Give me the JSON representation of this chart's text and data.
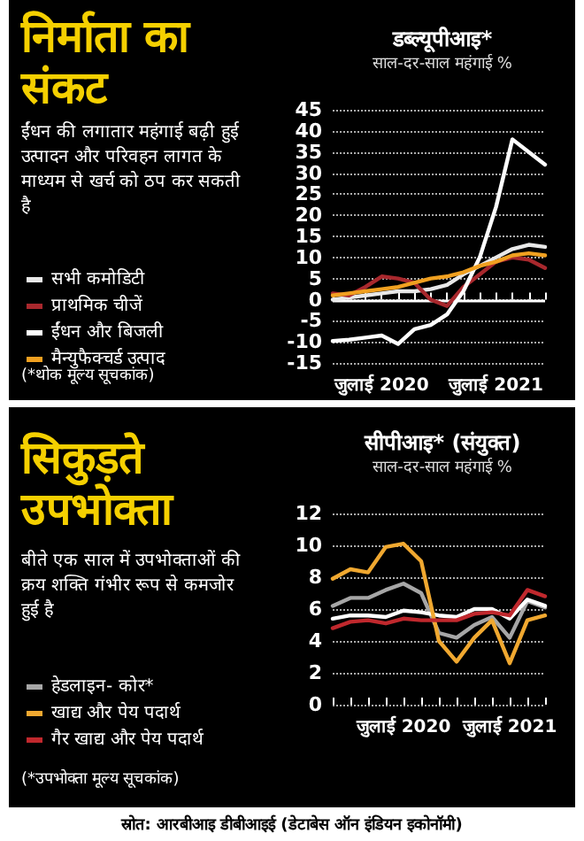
{
  "chart_data": [
    {
      "type": "line",
      "title": "निर्माता का संकट",
      "subtitle": "ईंधन की लगातार महंगाई बढ़ी हुई उत्पादन और परिवहन लागत के माध्यम से खर्च को ठप कर सकती है",
      "ylabel": "साल-दर-साल महंगाई %",
      "annotations": [
        "डब्ल्यूपीआइ*",
        "(*थोक मूल्य सूचकांक)"
      ],
      "categories": [
        null,
        null,
        null,
        "जुलाई 2020",
        null,
        null,
        null,
        null,
        null,
        null,
        "जुलाई 2021",
        null,
        null,
        null
      ],
      "series": [
        {
          "name": "सभी कमोडिटी",
          "color": "#e8e8e8",
          "values": [
            0,
            0.5,
            1,
            1.5,
            2,
            2,
            2.5,
            3.5,
            6,
            8,
            10,
            12,
            13,
            12.5
          ]
        },
        {
          "name": "प्राथमिक चीजें",
          "color": "#a8282d",
          "values": [
            1.5,
            1,
            3,
            5.5,
            5,
            4,
            0,
            -1.5,
            3,
            6,
            9,
            10,
            9.5,
            7.5
          ]
        },
        {
          "name": "ईंधन और बिजली",
          "color": "#ffffff",
          "values": [
            -9.8,
            -9.5,
            -9,
            -8.5,
            -10.5,
            -7,
            -6,
            -3.5,
            2,
            10,
            22,
            38,
            35,
            32
          ]
        },
        {
          "name": "मैन्युफैक्चर्ड उत्पाद",
          "color": "#f0a020",
          "values": [
            1,
            1.5,
            2,
            2.5,
            3,
            4,
            5,
            5.5,
            6.5,
            8,
            9,
            10.5,
            11,
            10.5
          ]
        }
      ],
      "ylim": [
        -15,
        45
      ],
      "yticks": [
        -15,
        -10,
        -5,
        0,
        5,
        10,
        15,
        20,
        25,
        30,
        35,
        40,
        45
      ],
      "grid": "y",
      "legend": "left",
      "marker": "none",
      "line_style": "solid",
      "ref_lines": [
        {
          "axis": "y",
          "value": 0,
          "color": "#ffffff"
        }
      ]
    },
    {
      "type": "line",
      "title": "सिकुड़ते उपभोक्ता",
      "subtitle": "बीते एक साल में उपभोक्ताओं की क्रय शक्ति गंभीर रूप से कमजोर हुई है",
      "ylabel": "साल-दर-साल महंगाई %",
      "annotations": [
        "सीपीआइ* (संयुक्त)",
        "(*उपभोक्ता मूल्य सूचकांक)",
        "स्रोत: आरबीआइ डीबीआइई (डेटाबेस ऑन इंडियन इकोनॉमी)"
      ],
      "categories": [
        null,
        null,
        null,
        null,
        "जुलाई 2020",
        null,
        null,
        null,
        null,
        null,
        "जुलाई 2021",
        null,
        null
      ],
      "series": [
        {
          "name": "हेडलाइन- कोर*",
          "color": "#a6a6a6",
          "values": [
            6.2,
            6.7,
            6.7,
            7.2,
            7.6,
            7,
            4.5,
            4.2,
            5,
            5.5,
            4.2,
            6.5,
            6.1
          ]
        },
        {
          "color": "#ffffff",
          "values": [
            5.4,
            5.6,
            5.6,
            5.5,
            5.9,
            5.8,
            5.6,
            5.5,
            6,
            6,
            5.4,
            6.6,
            6.2
          ]
        },
        {
          "name": "खाद्य और पेय पदार्थ",
          "color": "#f0a830",
          "values": [
            7.9,
            8.5,
            8.3,
            9.9,
            10.1,
            9,
            4,
            2.7,
            4.2,
            5.3,
            2.6,
            5.3,
            5.6
          ]
        },
        {
          "name": "गैर खाद्य और पेय पदार्थ",
          "color": "#c0282d",
          "values": [
            4.8,
            5.2,
            5.3,
            5.1,
            5.4,
            5.3,
            5.3,
            5.3,
            5.7,
            5.8,
            5.6,
            7.2,
            6.8
          ]
        }
      ],
      "ylim": [
        0,
        12
      ],
      "yticks": [
        0,
        2,
        4,
        6,
        8,
        10,
        12
      ],
      "grid": "y",
      "legend": "left",
      "marker": "none",
      "line_style": "solid"
    }
  ]
}
